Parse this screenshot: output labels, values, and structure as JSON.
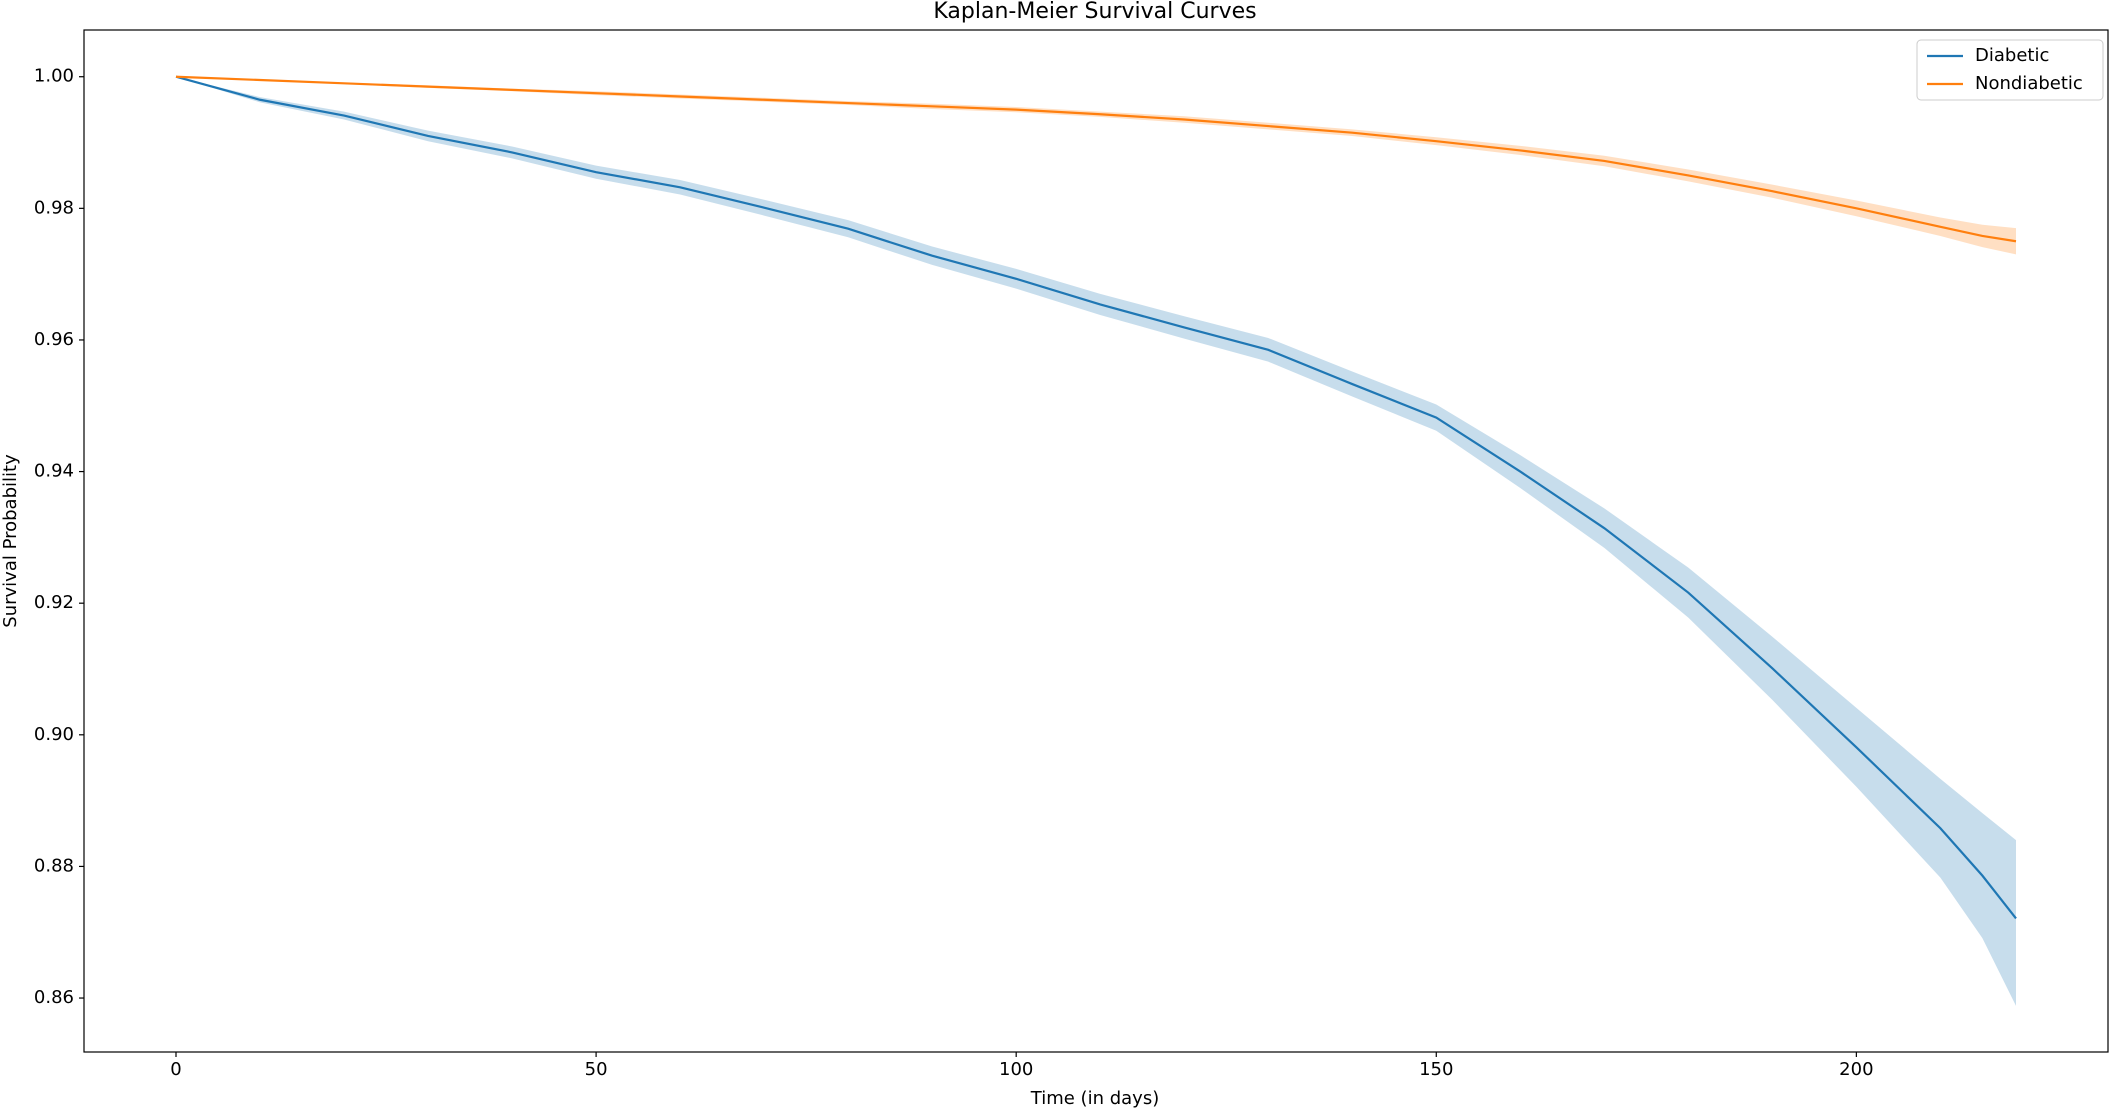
{
  "chart_data": {
    "type": "line",
    "title": "Kaplan-Meier Survival Curves",
    "xlabel": "Time (in days)",
    "ylabel": "Survival Probability",
    "x": [
      0,
      10,
      20,
      30,
      40,
      50,
      60,
      70,
      80,
      90,
      100,
      110,
      120,
      130,
      140,
      150,
      160,
      170,
      180,
      190,
      200,
      210,
      215,
      219
    ],
    "series": [
      {
        "name": "Diabetic",
        "color": "#1f77b4",
        "values": [
          1.0,
          0.9965,
          0.9941,
          0.991,
          0.9885,
          0.9855,
          0.9832,
          0.9801,
          0.9769,
          0.9728,
          0.9693,
          0.9654,
          0.9619,
          0.9585,
          0.9533,
          0.9482,
          0.94,
          0.9314,
          0.9216,
          0.9101,
          0.8981,
          0.8858,
          0.8786,
          0.8721
        ],
        "ci_lower": [
          1.0,
          0.9961,
          0.9935,
          0.9902,
          0.9876,
          0.9845,
          0.9821,
          0.9789,
          0.9756,
          0.9714,
          0.9678,
          0.9638,
          0.9602,
          0.9567,
          0.9514,
          0.9462,
          0.9375,
          0.9284,
          0.9178,
          0.9053,
          0.8921,
          0.8783,
          0.8691,
          0.8588
        ],
        "ci_upper": [
          1.0,
          0.9969,
          0.9947,
          0.9918,
          0.9894,
          0.9865,
          0.9843,
          0.9813,
          0.9782,
          0.9742,
          0.9708,
          0.967,
          0.9636,
          0.9603,
          0.9552,
          0.9502,
          0.9425,
          0.9344,
          0.9254,
          0.9149,
          0.9041,
          0.8933,
          0.8881,
          0.884
        ]
      },
      {
        "name": "Nondiabetic",
        "color": "#ff7f0e",
        "values": [
          1.0,
          0.9995,
          0.999,
          0.9985,
          0.998,
          0.9975,
          0.997,
          0.9965,
          0.996,
          0.9955,
          0.995,
          0.9943,
          0.9935,
          0.9925,
          0.9915,
          0.9902,
          0.9888,
          0.9872,
          0.985,
          0.9826,
          0.98,
          0.9772,
          0.9758,
          0.975
        ],
        "ci_lower": [
          1.0,
          0.9994,
          0.9989,
          0.9983,
          0.9978,
          0.9972,
          0.9967,
          0.9962,
          0.9957,
          0.9951,
          0.9946,
          0.9939,
          0.993,
          0.992,
          0.991,
          0.9896,
          0.9881,
          0.9864,
          0.9841,
          0.9816,
          0.9788,
          0.9758,
          0.9741,
          0.973
        ],
        "ci_upper": [
          1.0,
          0.9996,
          0.9991,
          0.9987,
          0.9982,
          0.9978,
          0.9973,
          0.9968,
          0.9963,
          0.9959,
          0.9954,
          0.9947,
          0.994,
          0.993,
          0.992,
          0.9908,
          0.9895,
          0.988,
          0.9859,
          0.9836,
          0.9812,
          0.9786,
          0.9775,
          0.977
        ]
      }
    ],
    "xlim": [
      -10.95,
      229.95
    ],
    "xticks": [
      0,
      50,
      100,
      150,
      200
    ],
    "ylim": [
      0.8518,
      1.0071
    ],
    "yticks": [
      0.86,
      0.88,
      {
        "value": 0.9,
        "label": "0.90"
      },
      0.92,
      0.94,
      0.96,
      0.98,
      {
        "value": 1.0,
        "label": "1.00"
      }
    ],
    "grid": false,
    "legend": "upper right"
  }
}
